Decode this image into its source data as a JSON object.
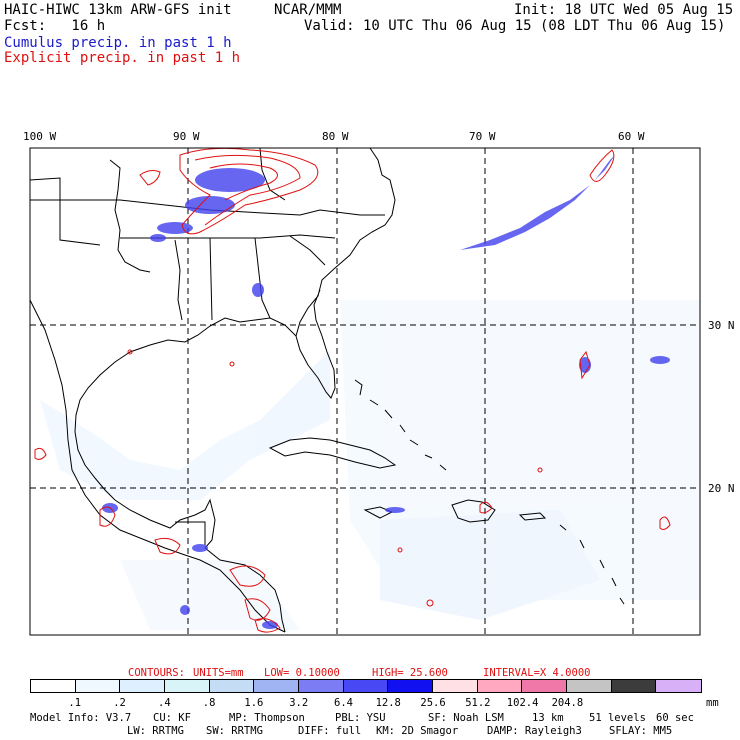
{
  "header": {
    "model_title": "HAIC-HIWC 13km ARW-GFS init",
    "center": "NCAR/MMM",
    "init": "Init: 18 UTC Wed 05 Aug 15",
    "fcst": "Fcst:   16 h",
    "valid": "Valid: 10 UTC Thu 06 Aug 15 (08 LDT Thu 06 Aug 15)",
    "legend_cumulus": "Cumulus precip. in past 1 h",
    "legend_explicit": "Explicit precip. in past 1 h"
  },
  "colors": {
    "cumulus": "#1a1acc",
    "explicit": "#e01010"
  },
  "map": {
    "lon_labels": [
      "100 W",
      "90 W",
      "80 W",
      "70 W",
      "60 W"
    ],
    "lat_labels": [
      "30 N",
      "20 N"
    ]
  },
  "contours_line": {
    "title": "CONTOURS:",
    "units": "UNITS=mm",
    "low": "LOW= 0.10000",
    "high": "HIGH= 25.600",
    "interval": "INTERVAL=X 4.0000"
  },
  "colorbar": {
    "unit": "mm",
    "colors": [
      "#ffffff",
      "#f0f8ff",
      "#def0ff",
      "#d8f4f8",
      "#c4dcf4",
      "#a0b4f4",
      "#7c7cf4",
      "#4848f4",
      "#1010f0",
      "#ffe0e4",
      "#ffa8c0",
      "#f078a8",
      "#c4c4c4",
      "#3c3c3c",
      "#d8b0f8"
    ],
    "labels": [
      ".1",
      ".2",
      ".4",
      ".8",
      "1.6",
      "3.2",
      "6.4",
      "12.8",
      "25.6",
      "51.2",
      "102.4",
      "204.8"
    ]
  },
  "model_info": {
    "line1": [
      "Model Info: V3.7",
      "CU: KF",
      "MP: Thompson",
      "PBL: YSU",
      "SF: Noah LSM",
      "13 km",
      "51 levels",
      "60 sec"
    ],
    "line2": [
      "LW: RRTMG",
      "SW: RRTMG",
      "DIFF: full",
      "KM: 2D Smagor",
      "DAMP: Rayleigh3",
      "SFLAY: MM5"
    ]
  }
}
